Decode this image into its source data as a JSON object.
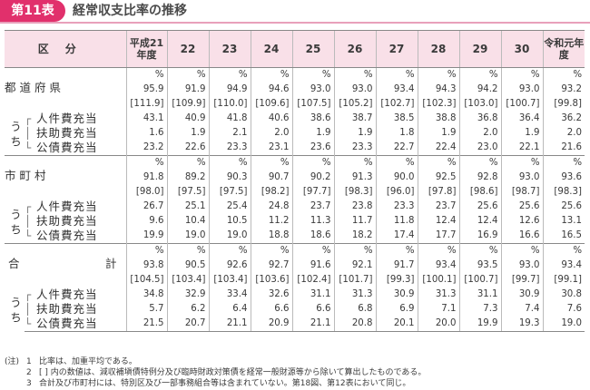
{
  "header": {
    "badge": "第11表",
    "title": "経常収支比率の推移"
  },
  "table": {
    "corner": "区分",
    "years": [
      "平成21年度",
      "22",
      "23",
      "24",
      "25",
      "26",
      "27",
      "28",
      "29",
      "30",
      "令和元年度"
    ],
    "percent_sign": "%",
    "uchi": "う ち",
    "groups": [
      {
        "label": "都道府県",
        "total": [
          "95.9",
          "91.9",
          "94.9",
          "94.6",
          "93.0",
          "93.0",
          "93.4",
          "94.3",
          "94.2",
          "93.0",
          "93.2"
        ],
        "adjusted": [
          "[111.9]",
          "[109.9]",
          "[110.0]",
          "[109.6]",
          "[107.5]",
          "[105.2]",
          "[102.7]",
          "[102.3]",
          "[103.0]",
          "[100.7]",
          "[99.8]"
        ],
        "rows": [
          {
            "label": "人件費充当",
            "values": [
              "43.1",
              "40.9",
              "41.8",
              "40.6",
              "38.6",
              "38.7",
              "38.5",
              "38.8",
              "36.8",
              "36.4",
              "36.2"
            ]
          },
          {
            "label": "扶助費充当",
            "values": [
              "1.6",
              "1.9",
              "2.1",
              "2.0",
              "1.9",
              "1.9",
              "1.8",
              "1.9",
              "2.0",
              "1.9",
              "2.0"
            ]
          },
          {
            "label": "公債費充当",
            "values": [
              "23.2",
              "22.6",
              "23.3",
              "23.1",
              "23.6",
              "23.3",
              "22.7",
              "22.4",
              "23.0",
              "22.1",
              "21.6"
            ]
          }
        ]
      },
      {
        "label": "市町村",
        "total": [
          "91.8",
          "89.2",
          "90.3",
          "90.7",
          "90.2",
          "91.3",
          "90.0",
          "92.5",
          "92.8",
          "93.0",
          "93.6"
        ],
        "adjusted": [
          "[98.0]",
          "[97.5]",
          "[97.5]",
          "[98.2]",
          "[97.7]",
          "[98.3]",
          "[96.0]",
          "[97.8]",
          "[98.6]",
          "[98.7]",
          "[98.3]"
        ],
        "rows": [
          {
            "label": "人件費充当",
            "values": [
              "26.7",
              "25.1",
              "25.4",
              "24.8",
              "23.7",
              "23.8",
              "23.3",
              "23.7",
              "25.6",
              "25.6",
              "25.6"
            ]
          },
          {
            "label": "扶助費充当",
            "values": [
              "9.6",
              "10.4",
              "10.5",
              "11.2",
              "11.3",
              "11.7",
              "11.8",
              "12.4",
              "12.4",
              "12.6",
              "13.1"
            ]
          },
          {
            "label": "公債費充当",
            "values": [
              "19.9",
              "19.0",
              "19.0",
              "18.8",
              "18.6",
              "18.2",
              "17.4",
              "17.7",
              "16.9",
              "16.6",
              "16.5"
            ]
          }
        ]
      },
      {
        "label_left": "合",
        "label_right": "計",
        "total": [
          "93.8",
          "90.5",
          "92.6",
          "92.7",
          "91.6",
          "92.1",
          "91.7",
          "93.4",
          "93.5",
          "93.0",
          "93.4"
        ],
        "adjusted": [
          "[104.5]",
          "[103.4]",
          "[103.4]",
          "[103.6]",
          "[102.4]",
          "[101.7]",
          "[99.3]",
          "[100.1]",
          "[100.7]",
          "[99.7]",
          "[99.1]"
        ],
        "rows": [
          {
            "label": "人件費充当",
            "values": [
              "34.8",
              "32.9",
              "33.4",
              "32.6",
              "31.1",
              "31.3",
              "30.9",
              "31.3",
              "31.1",
              "30.9",
              "30.8"
            ]
          },
          {
            "label": "扶助費充当",
            "values": [
              "5.7",
              "6.2",
              "6.4",
              "6.6",
              "6.6",
              "6.8",
              "6.9",
              "7.1",
              "7.3",
              "7.4",
              "7.6"
            ]
          },
          {
            "label": "公債費充当",
            "values": [
              "21.5",
              "20.7",
              "21.1",
              "20.9",
              "21.1",
              "20.8",
              "20.1",
              "20.0",
              "19.9",
              "19.3",
              "19.0"
            ]
          }
        ]
      }
    ]
  },
  "notes": {
    "prefix": "(注)",
    "items": [
      {
        "n": "1",
        "text": "比率は、加重平均である。"
      },
      {
        "n": "2",
        "text": "[ ] 内の数値は、減収補塡債特例分及び臨時財政対策債を経常一般財源等から除いて算出したものである。"
      },
      {
        "n": "3",
        "text": "合計及び市町村には、特別区及び一部事務組合等は含まれていない。第18図、第12表において同じ。"
      }
    ]
  }
}
